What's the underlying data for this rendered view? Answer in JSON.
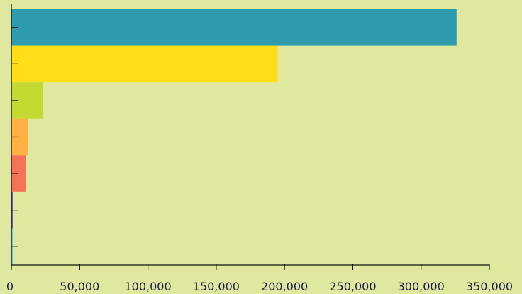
{
  "background": "#dfe89e",
  "chart_data": {
    "type": "bar",
    "orientation": "horizontal",
    "title": "",
    "xlabel": "",
    "ylabel": "",
    "categories": [
      "",
      "",
      "",
      "",
      "",
      "",
      ""
    ],
    "values": [
      326000,
      195000,
      23000,
      12000,
      10500,
      1500,
      1200
    ],
    "colors": [
      "#2e9bae",
      "#fede18",
      "#c4d932",
      "#fdb242",
      "#f47357",
      "#7b5aa6",
      "#6fcbe0"
    ],
    "xlim": [
      0,
      350000
    ],
    "xticks": [
      0,
      50000,
      100000,
      150000,
      200000,
      250000,
      300000,
      350000
    ],
    "xtick_labels": [
      "0",
      "50,000",
      "100,000",
      "150,000",
      "200,000",
      "250,000",
      "300,000",
      "350,000"
    ],
    "grid": false,
    "legend": "none"
  }
}
